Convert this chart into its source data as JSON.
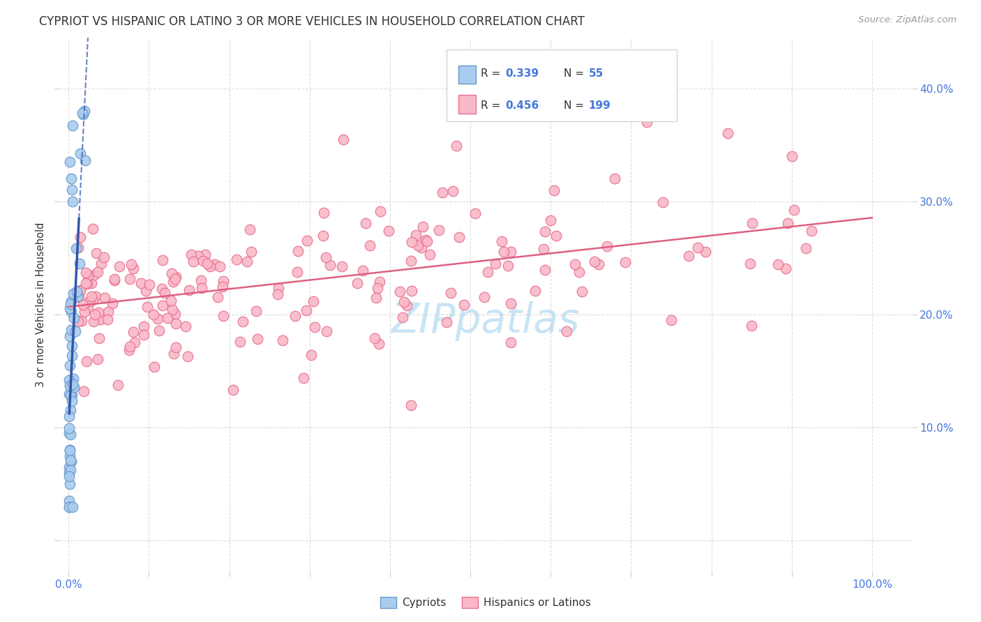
{
  "title": "CYPRIOT VS HISPANIC OR LATINO 3 OR MORE VEHICLES IN HOUSEHOLD CORRELATION CHART",
  "source": "Source: ZipAtlas.com",
  "ylabel": "3 or more Vehicles in Household",
  "cypriot_color": "#aaccee",
  "cypriot_edge": "#6699cc",
  "hispanic_color": "#f9b8c8",
  "hispanic_edge": "#e87090",
  "cypriot_line_color": "#3355aa",
  "hispanic_line_color": "#dd6080",
  "grid_color": "#cccccc",
  "background_color": "#ffffff",
  "watermark_color": "#c8e4f5",
  "tick_color": "#4477dd",
  "title_color": "#333333",
  "source_color": "#999999",
  "label_color": "#333333",
  "legend_r_color": "#333333",
  "legend_n_color": "#4477dd"
}
